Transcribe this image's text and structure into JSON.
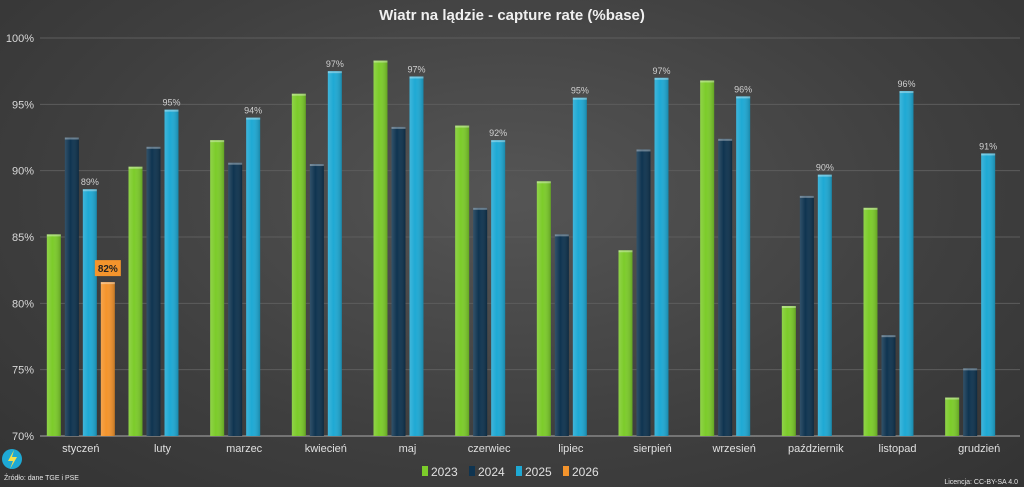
{
  "chart_data": {
    "type": "bar",
    "title": "Wiatr na lądzie - capture rate (%base)",
    "xlabel": "",
    "ylabel": "",
    "ylim": [
      70,
      100
    ],
    "yticks": [
      "70%",
      "75%",
      "80%",
      "85%",
      "90%",
      "95%",
      "100%"
    ],
    "grid": true,
    "legend": "bottom",
    "categories": [
      "styczeń",
      "luty",
      "marzec",
      "kwiecień",
      "maj",
      "czerwiec",
      "lipiec",
      "sierpień",
      "wrzesień",
      "październik",
      "listopad",
      "grudzień"
    ],
    "series": [
      {
        "name": "2023",
        "color": "#7ccc2a",
        "values": [
          85.2,
          90.3,
          92.3,
          95.8,
          98.3,
          93.4,
          89.2,
          84.0,
          96.8,
          79.8,
          87.2,
          72.9
        ]
      },
      {
        "name": "2024",
        "color": "#0f3450",
        "values": [
          92.5,
          91.8,
          90.6,
          90.5,
          93.3,
          87.2,
          85.2,
          91.6,
          92.4,
          88.1,
          77.6,
          75.1
        ]
      },
      {
        "name": "2025",
        "color": "#1ea9d4",
        "values": [
          88.6,
          94.6,
          94.0,
          97.5,
          97.1,
          92.3,
          95.5,
          97.0,
          95.6,
          89.7,
          96.0,
          91.3
        ],
        "data_labels": [
          "89%",
          "95%",
          "94%",
          "97%",
          "97%",
          "92%",
          "95%",
          "97%",
          "96%",
          "90%",
          "96%",
          "91%"
        ]
      },
      {
        "name": "2026",
        "color": "#f4942c",
        "values": [
          81.6,
          null,
          null,
          null,
          null,
          null,
          null,
          null,
          null,
          null,
          null,
          null
        ],
        "data_labels": [
          "82%",
          null,
          null,
          null,
          null,
          null,
          null,
          null,
          null,
          null,
          null,
          null
        ]
      }
    ]
  },
  "footer": {
    "source": "Źródło: dane TGE i PSE",
    "license": "Licencja: CC-BY-SA 4.0"
  }
}
